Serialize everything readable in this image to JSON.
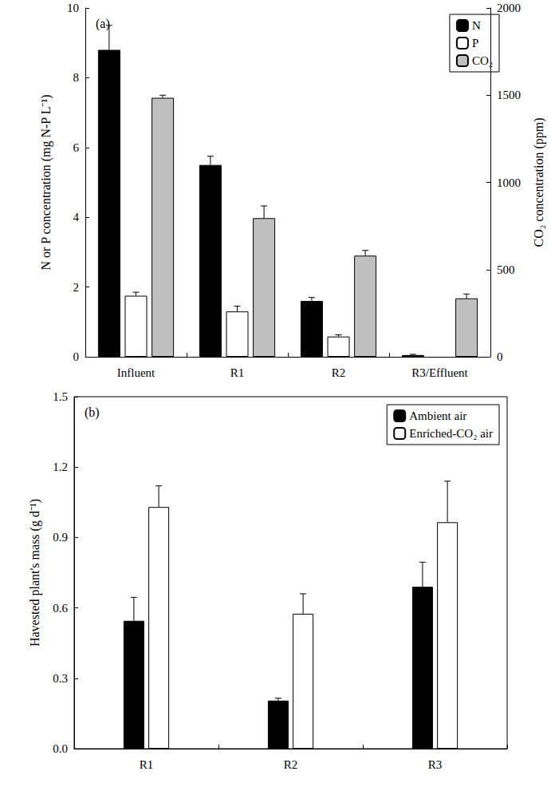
{
  "chart_data": [
    {
      "type": "bar",
      "title": "(a)",
      "categories": [
        "Influent",
        "R1",
        "R2",
        "R3/Effluent"
      ],
      "ylabel": "N or P concentration (mg N-P L⁻¹)",
      "y2label": "CO₂ concentration (ppm)",
      "ylim": [
        0,
        10
      ],
      "yticks": [
        0,
        2,
        4,
        6,
        8,
        10
      ],
      "y2lim": [
        0,
        2000
      ],
      "y2ticks": [
        0,
        500,
        1000,
        1500,
        2000
      ],
      "legend": "top-right",
      "series": [
        {
          "name": "N",
          "color": "#000000",
          "values": [
            8.8,
            5.5,
            1.6,
            0.05
          ],
          "errors": [
            0.7,
            0.25,
            0.1,
            0.02
          ]
        },
        {
          "name": "P",
          "color": "#ffffff",
          "values": [
            1.75,
            1.3,
            0.58,
            null
          ],
          "errors": [
            0.1,
            0.15,
            0.05,
            null
          ]
        },
        {
          "name": "CO₂",
          "color": "#c0c0c0",
          "axis": "y2",
          "values": [
            1485,
            795,
            580,
            335
          ],
          "errors": [
            15,
            70,
            30,
            25
          ]
        }
      ]
    },
    {
      "type": "bar",
      "title": "(b)",
      "categories": [
        "R1",
        "R2",
        "R3"
      ],
      "ylabel": "Havested plant's mass (g d⁻¹)",
      "ylim": [
        0,
        1.5
      ],
      "yticks": [
        {
          "value": 0,
          "label": "0.0"
        },
        0.3,
        0.6,
        0.9,
        1.2,
        1.5
      ],
      "legend": "top-right",
      "series": [
        {
          "name": "Ambient air",
          "color": "#000000",
          "values": [
            0.545,
            0.205,
            0.69
          ],
          "errors": [
            0.1,
            0.01,
            0.105
          ]
        },
        {
          "name": "Enriched-CO₂ air",
          "color": "#ffffff",
          "values": [
            1.03,
            0.575,
            0.965
          ],
          "errors": [
            0.09,
            0.085,
            0.175
          ]
        }
      ]
    }
  ]
}
